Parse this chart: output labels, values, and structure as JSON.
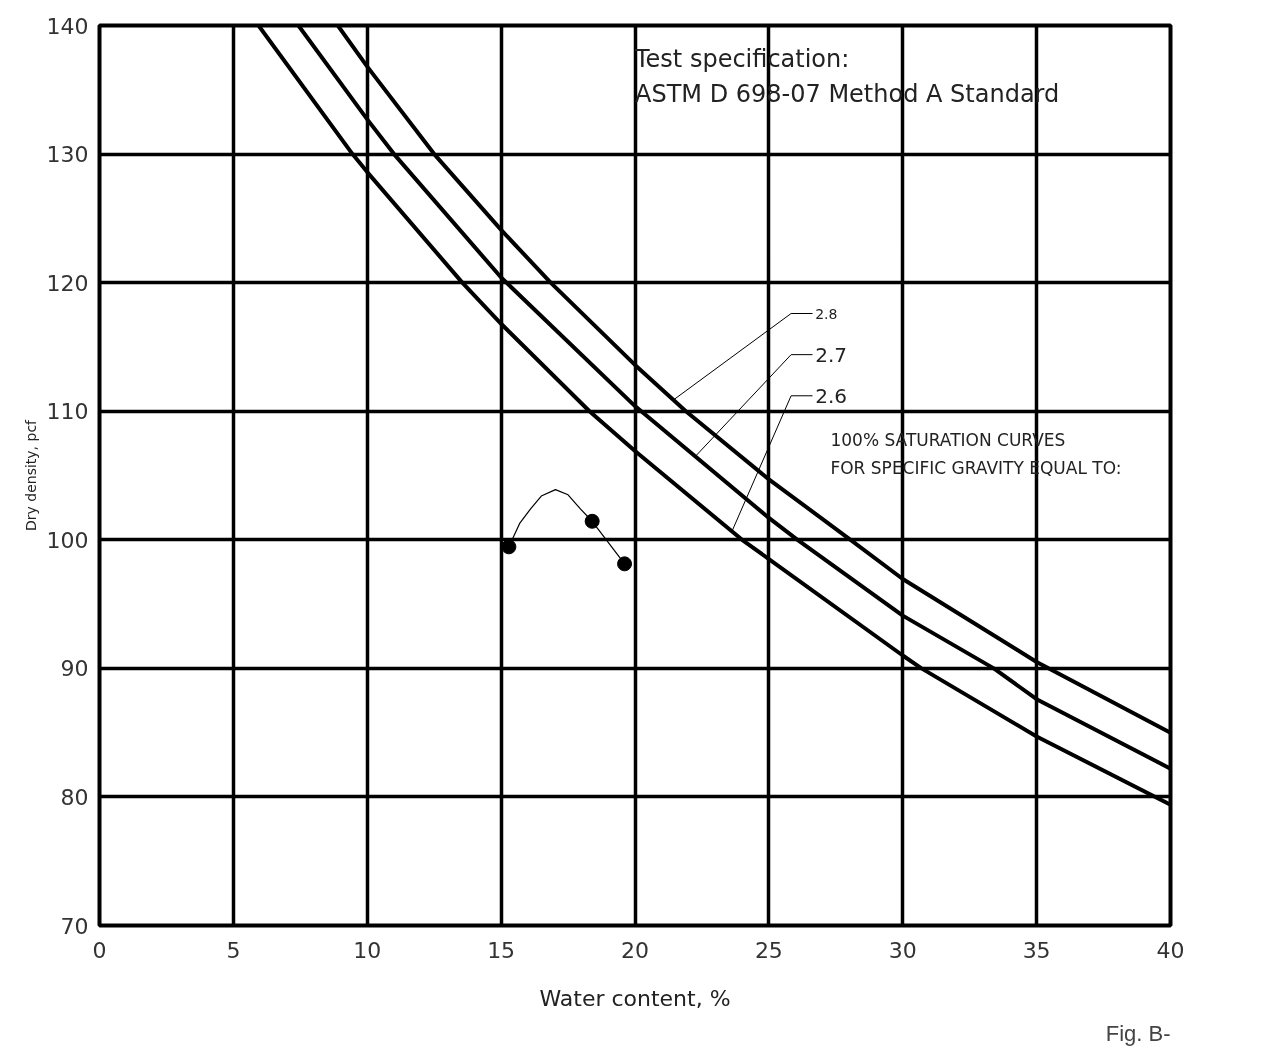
{
  "chart_data": {
    "type": "line",
    "xlabel": "Water content, %",
    "ylabel": "Dry density, pcf",
    "xlim": [
      0,
      40
    ],
    "ylim": [
      70,
      140
    ],
    "xticks": [
      0,
      5,
      10,
      15,
      20,
      25,
      30,
      35,
      40
    ],
    "yticks": [
      70,
      80,
      90,
      100,
      110,
      120,
      130,
      140
    ],
    "grid": true,
    "series": [
      {
        "color": "#000000",
        "x": [
          8.9,
          10,
          12.5,
          15,
          16.85,
          20,
          21.9,
          25,
          28.05,
          30,
          35,
          40
        ],
        "values": [
          140,
          136.8,
          130,
          124.1,
          120,
          113.6,
          110,
          104.7,
          100,
          96.95,
          90.5,
          85.0
        ]
      },
      {
        "color": "#000000",
        "x": [
          7.43,
          10,
          11,
          15,
          20,
          25,
          26.07,
          30,
          33.4,
          35,
          40
        ],
        "values": [
          140,
          132.7,
          130,
          120.4,
          110.4,
          101.7,
          100,
          94.1,
          90,
          87.6,
          82.2
        ]
      },
      {
        "color": "#000000",
        "x": [
          5.94,
          9.45,
          10,
          13.55,
          15,
          18.3,
          20,
          24,
          25,
          30,
          30.7,
          35,
          40
        ],
        "values": [
          140,
          130,
          128.6,
          120,
          116.8,
          110,
          106.9,
          100,
          98.5,
          91.0,
          90,
          84.7,
          79.4
        ]
      },
      {
        "color": "#000000",
        "x": [
          15.29,
          15.7,
          16.1,
          16.5,
          17.03,
          17.5,
          17.96,
          18.4,
          19.0,
          19.61
        ],
        "values": [
          99.45,
          101.3,
          102.4,
          103.4,
          103.9,
          103.5,
          102.4,
          101.44,
          99.8,
          98.13
        ]
      },
      {
        "type": "scatter",
        "marker": "circle",
        "color": "#000000",
        "x": [
          15.29,
          18.4,
          19.61
        ],
        "values": [
          99.45,
          101.44,
          98.13
        ]
      }
    ],
    "annotations": [
      "Test specification:",
      "ASTM D 698-07 Method A Standard",
      "100% SATURATION CURVES",
      "FOR SPECIFIC GRAVITY EQUAL TO:",
      "Fig. B-",
      {
        "text": "2.8",
        "x": 21.45,
        "y": 110.9
      },
      {
        "text": "2.7",
        "x": 22.26,
        "y": 106.5
      },
      {
        "text": "2.6",
        "x": 23.63,
        "y": 100.7
      }
    ]
  }
}
